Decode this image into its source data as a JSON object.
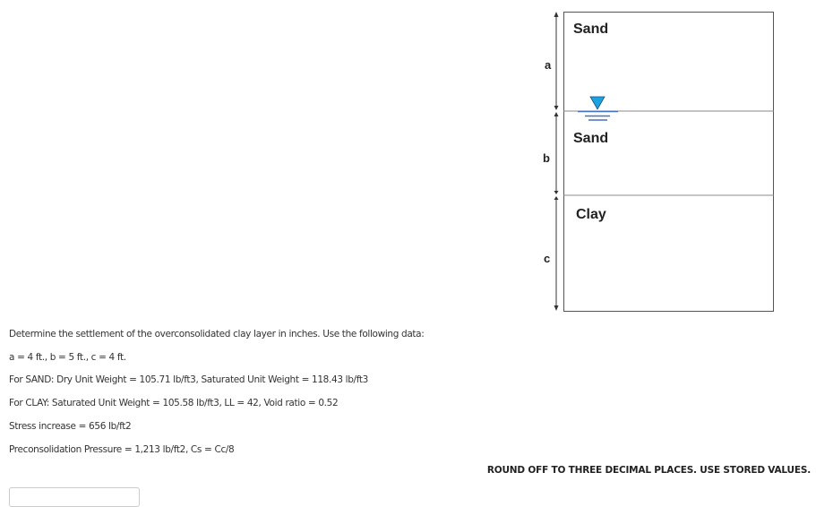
{
  "diagram": {
    "layers": [
      "Sand",
      "Sand",
      "Clay"
    ],
    "dimensions": [
      "a",
      "b",
      "c"
    ],
    "water_table_icon": "water-table-icon",
    "water_color": "#1aa3e0",
    "water_line_color": "#4472c4"
  },
  "question": {
    "prompt": "Determine the settlement of the overconsolidated clay layer in inches. Use the following data:",
    "lines": [
      "a = 4 ft., b = 5 ft., c = 4 ft.",
      "For SAND: Dry Unit Weight = 105.71 lb/ft3, Saturated Unit Weight = 118.43 lb/ft3",
      "For CLAY: Saturated Unit Weight = 105.58 lb/ft3, LL = 42, Void ratio = 0.52",
      "Stress increase = 656 lb/ft2",
      "Preconsolidation Pressure = 1,213 lb/ft2, Cs = Cc/8"
    ],
    "instruction": "ROUND OFF TO THREE DECIMAL PLACES. USE STORED VALUES."
  }
}
